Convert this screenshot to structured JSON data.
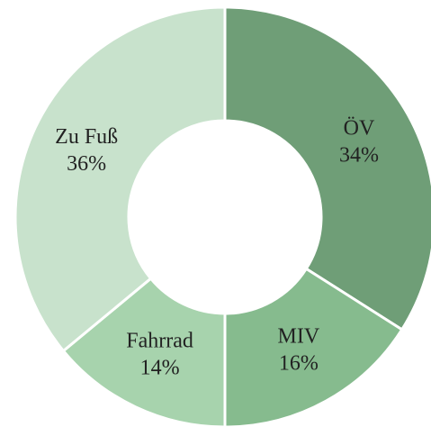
{
  "chart_data": {
    "type": "donut",
    "categories": [
      "ÖV",
      "MIV",
      "Fahrrad",
      "Zu Fuß"
    ],
    "values": [
      34,
      16,
      14,
      36
    ],
    "value_labels": [
      "34%",
      "16%",
      "14%",
      "36%"
    ],
    "colors": [
      "#6f9e77",
      "#86bb8e",
      "#a7d3ad",
      "#c8e2cc"
    ]
  }
}
